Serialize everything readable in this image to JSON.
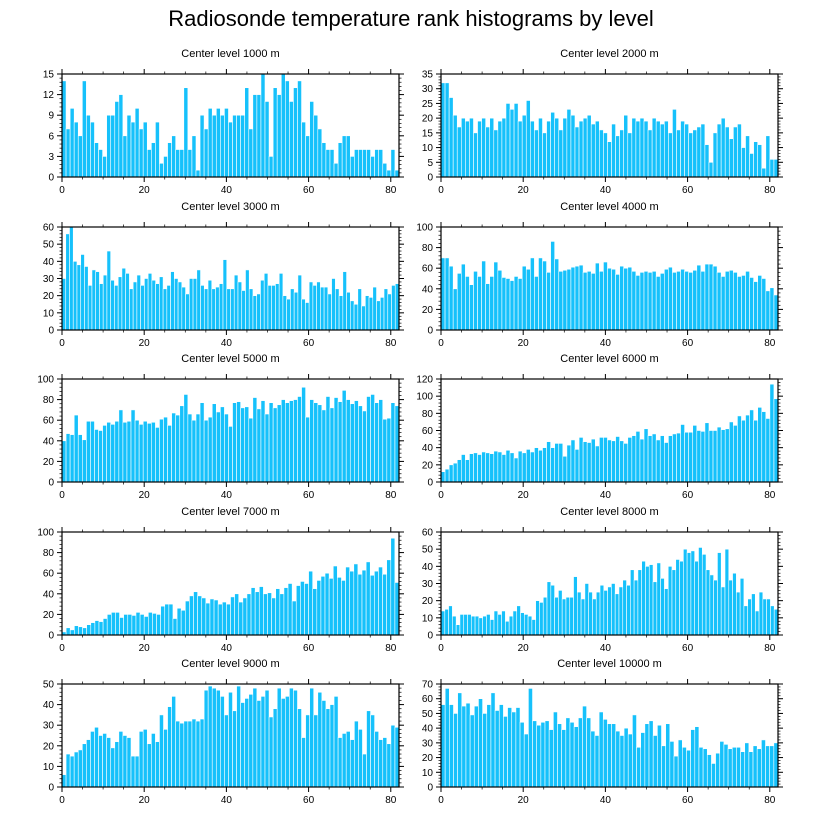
{
  "title": "Radiosonde temperature rank histograms by level",
  "colors": {
    "bar": "#16c1fb",
    "bar_edge": "#ffffff",
    "axis": "#000000"
  },
  "chart_data": [
    {
      "type": "bar",
      "title": "Center level 1000 m",
      "xlim": [
        0,
        82
      ],
      "ylim": [
        0,
        15
      ],
      "xticks": [
        0,
        20,
        40,
        60,
        80
      ],
      "yticks": [
        0,
        3,
        6,
        9,
        12,
        15
      ],
      "values": [
        14,
        7,
        10,
        8,
        6,
        14,
        9,
        8,
        5,
        4,
        3,
        9,
        9,
        11,
        12,
        6,
        9,
        8,
        10,
        7,
        8,
        4,
        5,
        8,
        2,
        3,
        5,
        6,
        4,
        4,
        13,
        4,
        6,
        1,
        9,
        7,
        10,
        9,
        10,
        9,
        10,
        8,
        9,
        9,
        9,
        13,
        7,
        12,
        12,
        15,
        11,
        3,
        13,
        12,
        15,
        14,
        11,
        13,
        14,
        8,
        6,
        11,
        9,
        7,
        5,
        4,
        4,
        2,
        5,
        6,
        6,
        3,
        4,
        4,
        4,
        4,
        3,
        4,
        4,
        2,
        1,
        4,
        1
      ]
    },
    {
      "type": "bar",
      "title": "Center level 2000 m",
      "xlim": [
        0,
        82
      ],
      "ylim": [
        0,
        35
      ],
      "xticks": [
        0,
        20,
        40,
        60,
        80
      ],
      "yticks": [
        0,
        5,
        10,
        15,
        20,
        25,
        30,
        35
      ],
      "values": [
        32,
        32,
        27,
        21,
        17,
        20,
        19,
        20,
        15,
        19,
        20,
        17,
        20,
        16,
        19,
        20,
        25,
        23,
        25,
        19,
        21,
        26,
        19,
        16,
        20,
        15,
        19,
        22,
        20,
        16,
        20,
        23,
        21,
        17,
        19,
        20,
        21,
        18,
        19,
        16,
        15,
        12,
        18,
        14,
        16,
        21,
        15,
        20,
        19,
        20,
        19,
        16,
        20,
        19,
        18,
        19,
        15,
        23,
        16,
        19,
        18,
        15,
        16,
        17,
        18,
        11,
        5,
        15,
        18,
        20,
        17,
        13,
        17,
        18,
        10,
        14,
        8,
        12,
        11,
        3,
        14,
        6,
        6
      ]
    },
    {
      "type": "bar",
      "title": "Center level 3000 m",
      "xlim": [
        0,
        82
      ],
      "ylim": [
        0,
        60
      ],
      "xticks": [
        0,
        20,
        40,
        60,
        80
      ],
      "yticks": [
        0,
        10,
        20,
        30,
        40,
        50,
        60
      ],
      "values": [
        30,
        56,
        60,
        40,
        38,
        44,
        37,
        26,
        35,
        34,
        27,
        32,
        46,
        29,
        26,
        31,
        36,
        33,
        24,
        28,
        32,
        26,
        30,
        33,
        29,
        27,
        31,
        24,
        26,
        34,
        30,
        28,
        25,
        21,
        30,
        30,
        35,
        26,
        24,
        29,
        24,
        25,
        27,
        41,
        24,
        24,
        32,
        28,
        23,
        35,
        24,
        20,
        21,
        29,
        33,
        26,
        26,
        27,
        33,
        20,
        18,
        24,
        22,
        32,
        18,
        16,
        28,
        26,
        28,
        25,
        25,
        21,
        30,
        24,
        20,
        34,
        22,
        17,
        15,
        24,
        14,
        20,
        19,
        25,
        17,
        19,
        24,
        21,
        26,
        27
      ]
    },
    {
      "type": "bar",
      "title": "Center level 4000 m",
      "xlim": [
        0,
        82
      ],
      "ylim": [
        0,
        100
      ],
      "xticks": [
        0,
        20,
        40,
        60,
        80
      ],
      "yticks": [
        0,
        20,
        40,
        60,
        80,
        100
      ],
      "values": [
        70,
        70,
        62,
        40,
        55,
        64,
        52,
        44,
        57,
        52,
        67,
        45,
        52,
        66,
        58,
        51,
        50,
        48,
        52,
        50,
        62,
        59,
        70,
        52,
        70,
        67,
        56,
        86,
        69,
        57,
        58,
        59,
        61,
        62,
        63,
        56,
        57,
        55,
        65,
        57,
        66,
        60,
        59,
        54,
        62,
        60,
        61,
        57,
        53,
        56,
        57,
        56,
        57,
        52,
        55,
        59,
        61,
        56,
        57,
        59,
        57,
        56,
        58,
        63,
        57,
        64,
        64,
        62,
        56,
        52,
        57,
        58,
        56,
        52,
        53,
        57,
        51,
        47,
        53,
        50,
        38,
        41,
        34
      ]
    },
    {
      "type": "bar",
      "title": "Center level 5000 m",
      "xlim": [
        0,
        82
      ],
      "ylim": [
        0,
        100
      ],
      "xticks": [
        0,
        20,
        40,
        60,
        80
      ],
      "yticks": [
        0,
        20,
        40,
        60,
        80,
        100
      ],
      "values": [
        40,
        47,
        46,
        65,
        46,
        41,
        59,
        59,
        51,
        50,
        55,
        58,
        56,
        59,
        70,
        58,
        59,
        70,
        60,
        56,
        59,
        57,
        58,
        53,
        61,
        63,
        55,
        67,
        65,
        74,
        85,
        66,
        60,
        66,
        77,
        60,
        63,
        76,
        68,
        73,
        66,
        54,
        77,
        78,
        72,
        73,
        62,
        82,
        71,
        79,
        66,
        77,
        72,
        75,
        80,
        77,
        79,
        80,
        83,
        92,
        63,
        80,
        77,
        75,
        70,
        83,
        72,
        82,
        78,
        89,
        80,
        76,
        79,
        74,
        69,
        83,
        85,
        77,
        80,
        61,
        62,
        77,
        74
      ]
    },
    {
      "type": "bar",
      "title": "Center level 6000 m",
      "xlim": [
        0,
        82
      ],
      "ylim": [
        0,
        120
      ],
      "xticks": [
        0,
        20,
        40,
        60,
        80
      ],
      "yticks": [
        0,
        20,
        40,
        60,
        80,
        100,
        120
      ],
      "values": [
        12,
        15,
        20,
        22,
        26,
        32,
        26,
        33,
        34,
        32,
        35,
        34,
        33,
        36,
        35,
        32,
        37,
        34,
        28,
        36,
        34,
        38,
        35,
        40,
        37,
        40,
        47,
        40,
        45,
        45,
        30,
        43,
        49,
        38,
        52,
        47,
        46,
        50,
        42,
        52,
        52,
        49,
        48,
        53,
        48,
        45,
        52,
        54,
        59,
        50,
        62,
        54,
        56,
        49,
        54,
        46,
        54,
        56,
        57,
        67,
        58,
        58,
        66,
        60,
        59,
        69,
        60,
        60,
        64,
        61,
        62,
        70,
        66,
        77,
        72,
        78,
        84,
        72,
        87,
        82,
        74,
        114,
        97
      ]
    },
    {
      "type": "bar",
      "title": "Center level 7000 m",
      "xlim": [
        0,
        82
      ],
      "ylim": [
        0,
        100
      ],
      "xticks": [
        0,
        20,
        40,
        60,
        80
      ],
      "yticks": [
        0,
        20,
        40,
        60,
        80,
        100
      ],
      "values": [
        3,
        7,
        5,
        9,
        8,
        7,
        10,
        12,
        14,
        13,
        16,
        20,
        22,
        22,
        17,
        20,
        20,
        19,
        22,
        20,
        18,
        22,
        21,
        20,
        28,
        30,
        30,
        16,
        26,
        24,
        33,
        38,
        42,
        38,
        36,
        31,
        35,
        34,
        30,
        32,
        30,
        37,
        40,
        32,
        36,
        40,
        46,
        42,
        47,
        40,
        41,
        36,
        45,
        40,
        46,
        50,
        33,
        48,
        52,
        50,
        62,
        45,
        53,
        57,
        60,
        55,
        67,
        56,
        53,
        66,
        62,
        69,
        59,
        63,
        71,
        58,
        62,
        66,
        59,
        73,
        94,
        51
      ]
    },
    {
      "type": "bar",
      "title": "Center level 8000 m",
      "xlim": [
        0,
        82
      ],
      "ylim": [
        0,
        60
      ],
      "xticks": [
        0,
        20,
        40,
        60,
        80
      ],
      "yticks": [
        0,
        10,
        20,
        30,
        40,
        50,
        60
      ],
      "values": [
        14,
        15,
        17,
        11,
        6,
        12,
        12,
        12,
        11,
        11,
        10,
        11,
        12,
        9,
        14,
        12,
        14,
        8,
        11,
        14,
        17,
        13,
        12,
        11,
        9,
        20,
        19,
        22,
        31,
        29,
        22,
        26,
        21,
        22,
        22,
        34,
        25,
        21,
        30,
        25,
        21,
        25,
        29,
        26,
        28,
        30,
        24,
        28,
        32,
        29,
        38,
        32,
        38,
        43,
        40,
        41,
        31,
        42,
        33,
        27,
        40,
        38,
        44,
        43,
        50,
        48,
        49,
        43,
        51,
        47,
        38,
        35,
        32,
        48,
        28,
        50,
        32,
        36,
        25,
        33,
        17,
        21,
        24,
        14,
        25,
        21,
        21,
        17,
        15
      ]
    },
    {
      "type": "bar",
      "title": "Center level 9000 m",
      "xlim": [
        0,
        82
      ],
      "ylim": [
        0,
        50
      ],
      "xticks": [
        0,
        20,
        40,
        60,
        80
      ],
      "yticks": [
        0,
        10,
        20,
        30,
        40,
        50
      ],
      "values": [
        6,
        16,
        15,
        17,
        18,
        21,
        23,
        27,
        29,
        25,
        26,
        24,
        19,
        22,
        27,
        25,
        24,
        15,
        15,
        27,
        28,
        21,
        26,
        22,
        35,
        28,
        39,
        44,
        32,
        31,
        32,
        32,
        33,
        32,
        33,
        47,
        49,
        48,
        47,
        44,
        35,
        46,
        37,
        49,
        41,
        43,
        45,
        48,
        42,
        44,
        47,
        34,
        38,
        48,
        43,
        44,
        48,
        47,
        38,
        24,
        35,
        48,
        35,
        46,
        42,
        38,
        40,
        44,
        24,
        26,
        27,
        23,
        32,
        28,
        16,
        37,
        35,
        27,
        23,
        24,
        21,
        30,
        29
      ]
    },
    {
      "type": "bar",
      "title": "Center level 10000 m",
      "xlim": [
        0,
        82
      ],
      "ylim": [
        0,
        70
      ],
      "xticks": [
        0,
        20,
        40,
        60,
        80
      ],
      "yticks": [
        0,
        10,
        20,
        30,
        40,
        50,
        60,
        70
      ],
      "values": [
        56,
        67,
        56,
        50,
        64,
        55,
        57,
        49,
        55,
        60,
        50,
        56,
        64,
        52,
        56,
        48,
        54,
        51,
        54,
        44,
        36,
        67,
        45,
        42,
        44,
        45,
        39,
        51,
        43,
        39,
        47,
        44,
        41,
        47,
        55,
        47,
        38,
        35,
        51,
        46,
        43,
        43,
        38,
        35,
        40,
        36,
        49,
        27,
        37,
        43,
        45,
        35,
        42,
        28,
        43,
        31,
        21,
        32,
        27,
        25,
        39,
        41,
        27,
        26,
        22,
        16,
        23,
        31,
        29,
        26,
        27,
        27,
        24,
        30,
        24,
        28,
        26,
        32,
        28,
        28,
        30
      ]
    }
  ]
}
